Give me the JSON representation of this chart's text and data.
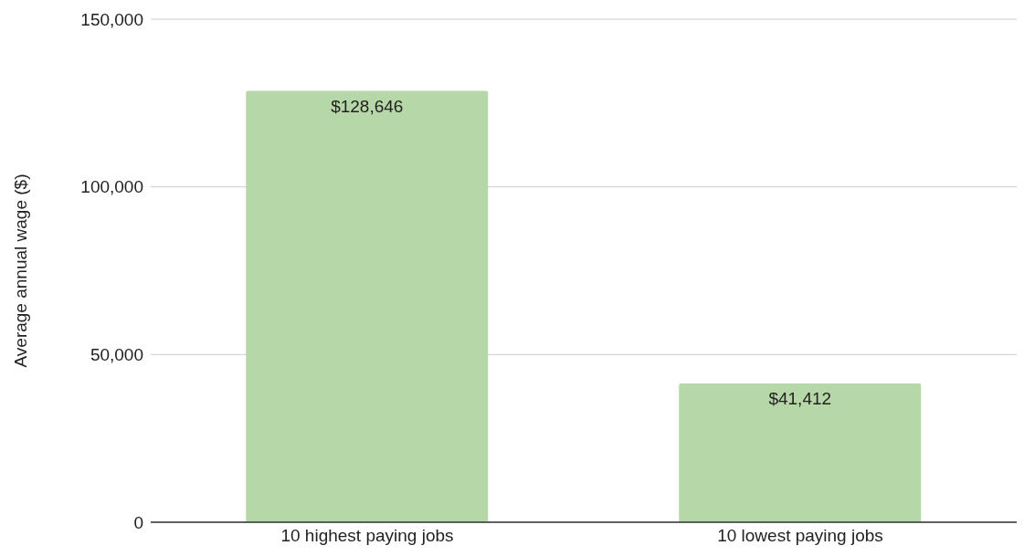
{
  "chart_data": {
    "type": "bar",
    "ylabel": "Average annual wage ($)",
    "categories": [
      "10 highest paying jobs",
      "10 lowest paying jobs"
    ],
    "values": [
      128646,
      41412
    ],
    "color": "#b6d7a8",
    "value_labels": [
      "$128,646",
      "$41,412"
    ],
    "ylim": [
      0,
      150000
    ],
    "yticks": [
      {
        "value": 0,
        "label": "0"
      },
      {
        "value": 50000,
        "label": "50,000"
      },
      {
        "value": 100000,
        "label": "100,000"
      },
      {
        "value": 150000,
        "label": "150,000"
      }
    ],
    "grid": "y",
    "legend": false
  }
}
